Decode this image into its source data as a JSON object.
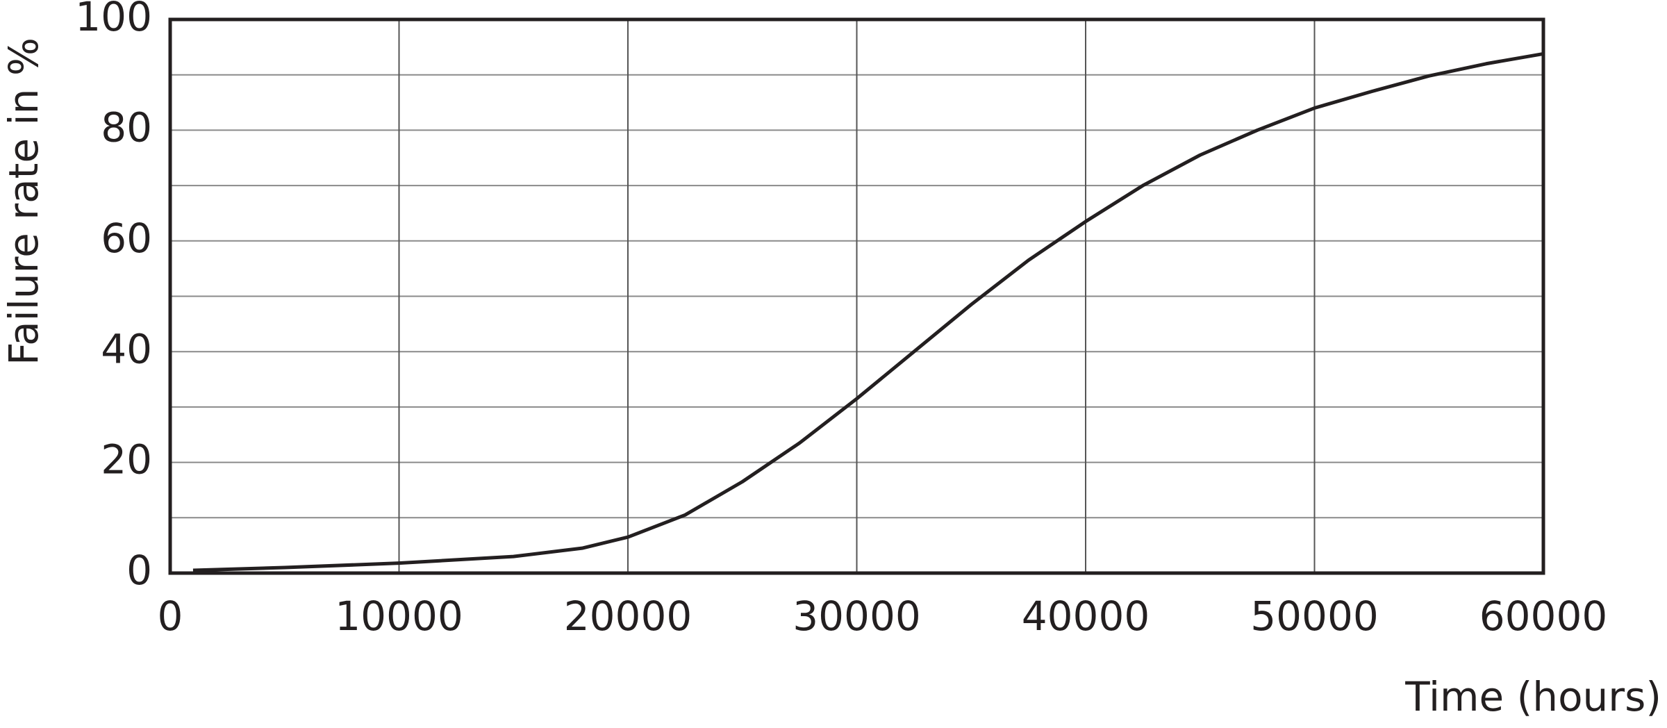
{
  "chart_data": {
    "type": "line",
    "x_label": "Time (hours)",
    "y_label": "Failure rate in %",
    "x": [
      1000,
      5000,
      10000,
      15000,
      18000,
      20000,
      22500,
      25000,
      27500,
      30000,
      32500,
      35000,
      37500,
      40000,
      42500,
      45000,
      47500,
      50000,
      52500,
      55000,
      57500,
      60000
    ],
    "series": [
      {
        "color": "#231f20",
        "values": [
          0.5,
          1,
          1.8,
          3,
          4.5,
          6.5,
          10.5,
          16.5,
          23.5,
          31.5,
          40,
          48.5,
          56.5,
          63.5,
          70,
          75.5,
          80,
          84,
          87,
          89.8,
          92,
          93.8
        ]
      }
    ],
    "xlim": [
      0,
      60000
    ],
    "xticks": [
      0,
      10000,
      20000,
      30000,
      40000,
      50000,
      60000
    ],
    "ylim": [
      0,
      100
    ],
    "yticks": [
      0,
      20,
      40,
      60,
      80,
      100
    ],
    "y_minor_grid": [
      10,
      30,
      50,
      70,
      90
    ],
    "grid": true
  }
}
